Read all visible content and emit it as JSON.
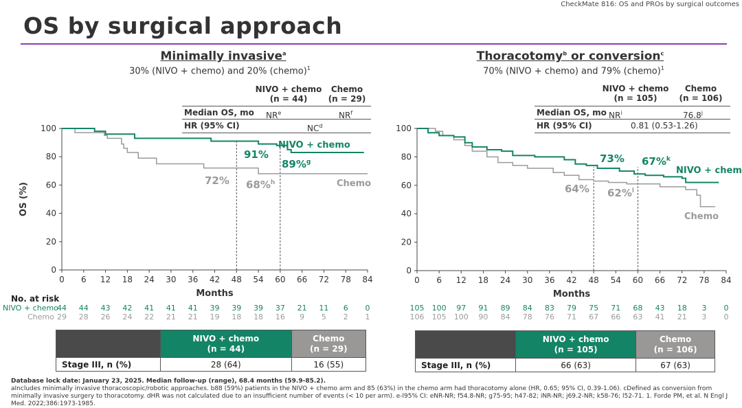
{
  "header_caption": "CheckMate 816: OS and PROs by surgical outcomes",
  "title": "OS by surgical approach",
  "colors": {
    "nivo": "#138466",
    "chemo": "#9a9a9a",
    "accent": "#8e3fb0"
  },
  "panels": [
    {
      "title": "Minimally invasive",
      "title_sup": "a",
      "subtitle": "30% (NIVO + chemo) and 20% (chemo)",
      "subtitle_sup": "1",
      "col1": "NIVO + chemo",
      "col1_n": "(n = 44)",
      "col2": "Chemo",
      "col2_n": "(n = 29)",
      "median_label": "Median OS, mo",
      "median1": "NR",
      "median1_sup": "e",
      "median2": "NR",
      "median2_sup": "f",
      "hr_label": "HR (95% CI)",
      "hr": "NC",
      "hr_sup": "d",
      "risk_label": "No. at risk",
      "risk_nivo_label": "NIVO + chemo",
      "risk_chemo_label": "Chemo",
      "risk_nivo": [
        "44",
        "44",
        "43",
        "42",
        "41",
        "41",
        "41",
        "39",
        "39",
        "39",
        "37",
        "21",
        "11",
        "6",
        "0"
      ],
      "risk_chemo": [
        "29",
        "28",
        "26",
        "24",
        "22",
        "21",
        "21",
        "19",
        "18",
        "18",
        "16",
        "9",
        "5",
        "2",
        "1"
      ],
      "stage_label": "Stage III, n (%)",
      "stage1": "28 (64)",
      "stage2": "16 (55)"
    },
    {
      "title": "Thoracotomy",
      "title_sup": "b",
      "title2": " or conversion",
      "title2_sup": "c",
      "subtitle": "70% (NIVO + chemo) and 79% (chemo)",
      "subtitle_sup": "1",
      "col1": "NIVO + chemo",
      "col1_n": "(n = 105)",
      "col2": "Chemo",
      "col2_n": "(n = 106)",
      "median_label": "Median OS, mo",
      "median1": "NR",
      "median1_sup": "i",
      "median2": "76.8",
      "median2_sup": "j",
      "hr_label": "HR (95% CI)",
      "hr": "0.81 (0.53-1.26)",
      "risk_nivo": [
        "105",
        "100",
        "97",
        "91",
        "89",
        "84",
        "83",
        "79",
        "75",
        "71",
        "68",
        "43",
        "18",
        "3",
        "0"
      ],
      "risk_chemo": [
        "106",
        "105",
        "100",
        "90",
        "84",
        "78",
        "76",
        "71",
        "67",
        "66",
        "63",
        "41",
        "21",
        "3",
        "0"
      ],
      "stage_label": "Stage III, n (%)",
      "stage1": "66 (63)",
      "stage2": "67 (63)"
    }
  ],
  "chart_data": [
    {
      "type": "line",
      "xlabel": "Months",
      "ylabel": "OS (%)",
      "xlim": [
        0,
        84
      ],
      "ylim": [
        0,
        100
      ],
      "xticks": [
        0,
        6,
        12,
        18,
        24,
        30,
        36,
        42,
        48,
        54,
        60,
        66,
        72,
        78,
        84
      ],
      "yticks": [
        0,
        20,
        40,
        60,
        80,
        100
      ],
      "series": [
        {
          "name": "NIVO + chemo",
          "color": "#138466",
          "steps": [
            [
              0,
              100
            ],
            [
              9,
              98
            ],
            [
              12,
              96
            ],
            [
              20,
              93
            ],
            [
              41,
              91
            ],
            [
              54,
              89
            ],
            [
              59,
              88
            ],
            [
              62,
              85
            ],
            [
              63,
              83
            ],
            [
              83,
              83
            ]
          ]
        },
        {
          "name": "Chemo",
          "color": "#9a9a9a",
          "steps": [
            [
              0,
              100
            ],
            [
              3.6,
              97
            ],
            [
              11.7,
              95
            ],
            [
              12.5,
              93
            ],
            [
              16.4,
              89
            ],
            [
              17,
              86
            ],
            [
              18,
              83
            ],
            [
              21,
              79
            ],
            [
              26,
              75
            ],
            [
              39,
              72
            ],
            [
              54,
              68
            ],
            [
              84,
              68
            ]
          ]
        }
      ],
      "annotations": [
        {
          "text": "91%",
          "series": "NIVO + chemo"
        },
        {
          "text": "89%",
          "sup": "g",
          "series": "NIVO + chemo"
        },
        {
          "text": "72%",
          "series": "Chemo"
        },
        {
          "text": "68%",
          "sup": "h",
          "series": "Chemo"
        }
      ],
      "reference_lines_x": [
        48,
        60
      ]
    },
    {
      "type": "line",
      "xlabel": "Months",
      "ylabel": "",
      "xlim": [
        0,
        84
      ],
      "ylim": [
        0,
        100
      ],
      "xticks": [
        0,
        6,
        12,
        18,
        24,
        30,
        36,
        42,
        48,
        54,
        60,
        66,
        72,
        78,
        84
      ],
      "yticks": [
        0,
        20,
        40,
        60,
        80,
        100
      ],
      "series": [
        {
          "name": "NIVO + chemo",
          "color": "#138466",
          "steps": [
            [
              0,
              100
            ],
            [
              3,
              97
            ],
            [
              6,
              95
            ],
            [
              10,
              94
            ],
            [
              13,
              90
            ],
            [
              15,
              87
            ],
            [
              19,
              85
            ],
            [
              23,
              84
            ],
            [
              26,
              81
            ],
            [
              32,
              80
            ],
            [
              40,
              78
            ],
            [
              43,
              75
            ],
            [
              46,
              74
            ],
            [
              49,
              72
            ],
            [
              55,
              70
            ],
            [
              59,
              68
            ],
            [
              62,
              67
            ],
            [
              67,
              66
            ],
            [
              72,
              65
            ],
            [
              73,
              62
            ],
            [
              82,
              62
            ]
          ]
        },
        {
          "name": "Chemo",
          "color": "#9a9a9a",
          "steps": [
            [
              0,
              100
            ],
            [
              5,
              98
            ],
            [
              7,
              95
            ],
            [
              10,
              92
            ],
            [
              13,
              88
            ],
            [
              15,
              84
            ],
            [
              19,
              80
            ],
            [
              22,
              76
            ],
            [
              26,
              74
            ],
            [
              30,
              72
            ],
            [
              37,
              69
            ],
            [
              40,
              67
            ],
            [
              44,
              64
            ],
            [
              48,
              63
            ],
            [
              52,
              62
            ],
            [
              57,
              61
            ],
            [
              66,
              59
            ],
            [
              73,
              57
            ],
            [
              76,
              53
            ],
            [
              77,
              45
            ],
            [
              79,
              45
            ],
            [
              81,
              45
            ]
          ]
        }
      ],
      "annotations": [
        {
          "text": "73%",
          "series": "NIVO + chemo"
        },
        {
          "text": "67%",
          "sup": "k",
          "series": "NIVO + chemo"
        },
        {
          "text": "64%",
          "series": "Chemo"
        },
        {
          "text": "62%",
          "sup": "l",
          "series": "Chemo"
        }
      ],
      "reference_lines_x": [
        48,
        60
      ]
    }
  ],
  "footnotes": {
    "line1": "Database lock date: January 23, 2025. Median follow-up (range), 68.4 months (59.9-85.2).",
    "line2": "aIncludes minimally invasive thoracoscopic/robotic approaches. b88 (59%) patients in the NIVO + chemo arm and 85 (63%) in the chemo arm had thoracotomy alone (HR, 0.65; 95% CI, 0.39-1.06). cDefined as conversion from minimally invasive surgery to thoracotomy. dHR was not calculated due to an insufficient number of events (< 10 per arm). e-l95% CI: eNR-NR; f54.8-NR; g75-95; h47-82; iNR-NR; j69.2-NR; k58-76; l52-71. 1. Forde PM, et al. N Engl J Med. 2022;386:1973-1985."
  }
}
